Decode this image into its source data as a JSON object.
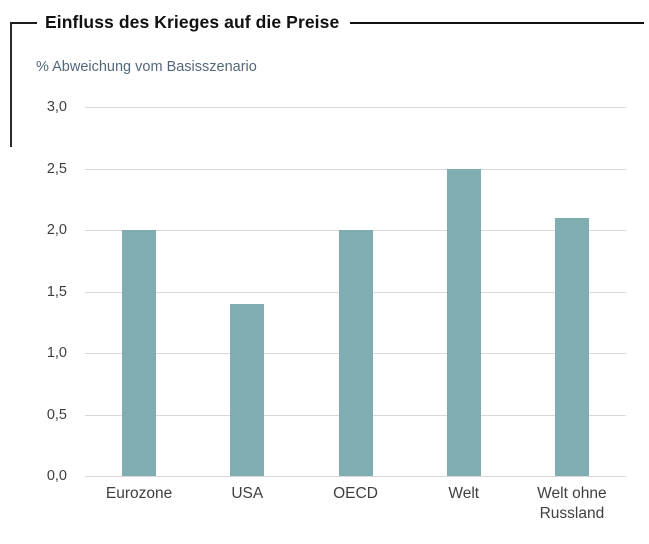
{
  "figure": {
    "title": "Einfluss des Krieges auf die Preise",
    "subtitle": "% Abweichung vom Basisszenario"
  },
  "chart_data": {
    "type": "bar",
    "title": "Einfluss des Krieges auf die Preise",
    "ylabel": "% Abweichung vom Basisszenario",
    "xlabel": "",
    "categories": [
      "Eurozone",
      "USA",
      "OECD",
      "Welt",
      "Welt ohne Russland"
    ],
    "values": [
      2.0,
      1.4,
      2.0,
      2.5,
      2.1
    ],
    "ylim": [
      0,
      3
    ],
    "grid": true,
    "legend": false,
    "y_ticks": [
      {
        "value": 3.0,
        "label": "3,0"
      },
      {
        "value": 2.5,
        "label": "2,5"
      },
      {
        "value": 2.0,
        "label": "2,0"
      },
      {
        "value": 1.5,
        "label": "1,5"
      },
      {
        "value": 1.0,
        "label": "1,0"
      },
      {
        "value": 0.5,
        "label": "0,5"
      },
      {
        "value": 0.0,
        "label": "0,0"
      }
    ],
    "colors": {
      "bar": "#7FADB2",
      "gridline": "#D9D9D9",
      "tick_text": "#3F3F3F",
      "category_text": "#3F3F3F",
      "subtitle_text": "#54677B",
      "title_text": "#111111"
    }
  }
}
